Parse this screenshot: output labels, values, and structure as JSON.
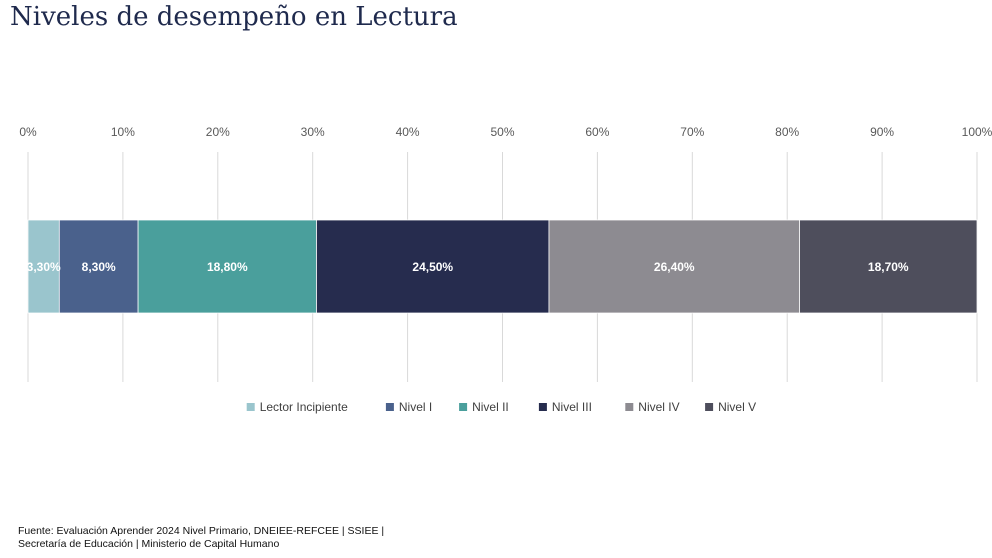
{
  "header": {
    "title": "Niveles de desempeño en Lectura"
  },
  "chart_data": {
    "type": "bar",
    "orientation": "horizontal",
    "stacked": true,
    "categories": [
      ""
    ],
    "series": [
      {
        "name": "Lector Incipiente",
        "values": [
          3.3
        ],
        "color": "#9ac5cd",
        "label": "3,30%"
      },
      {
        "name": "Nivel I",
        "values": [
          8.3
        ],
        "color": "#4a618c",
        "label": "8,30%"
      },
      {
        "name": "Nivel II",
        "values": [
          18.8
        ],
        "color": "#4a9f9c",
        "label": "18,80%"
      },
      {
        "name": "Nivel III",
        "values": [
          24.5
        ],
        "color": "#262c4e",
        "label": "24,50%"
      },
      {
        "name": "Nivel IV",
        "values": [
          26.4
        ],
        "color": "#8d8b91",
        "label": "26,40%"
      },
      {
        "name": "Nivel V",
        "values": [
          18.7
        ],
        "color": "#4e4e5c",
        "label": "18,70%"
      }
    ],
    "xlim": [
      0,
      100
    ],
    "xticks": [
      "0%",
      "10%",
      "20%",
      "30%",
      "40%",
      "50%",
      "60%",
      "70%",
      "80%",
      "90%",
      "100%"
    ],
    "x_axis_position": "top",
    "grid": true,
    "legend": "bottom"
  },
  "footer": {
    "source_line1": "Fuente: Evaluación Aprender 2024 Nivel Primario, DNEIEE-REFCEE | SSIEE |",
    "source_line2": "Secretaría de Educación | Ministerio de Capital Humano"
  }
}
